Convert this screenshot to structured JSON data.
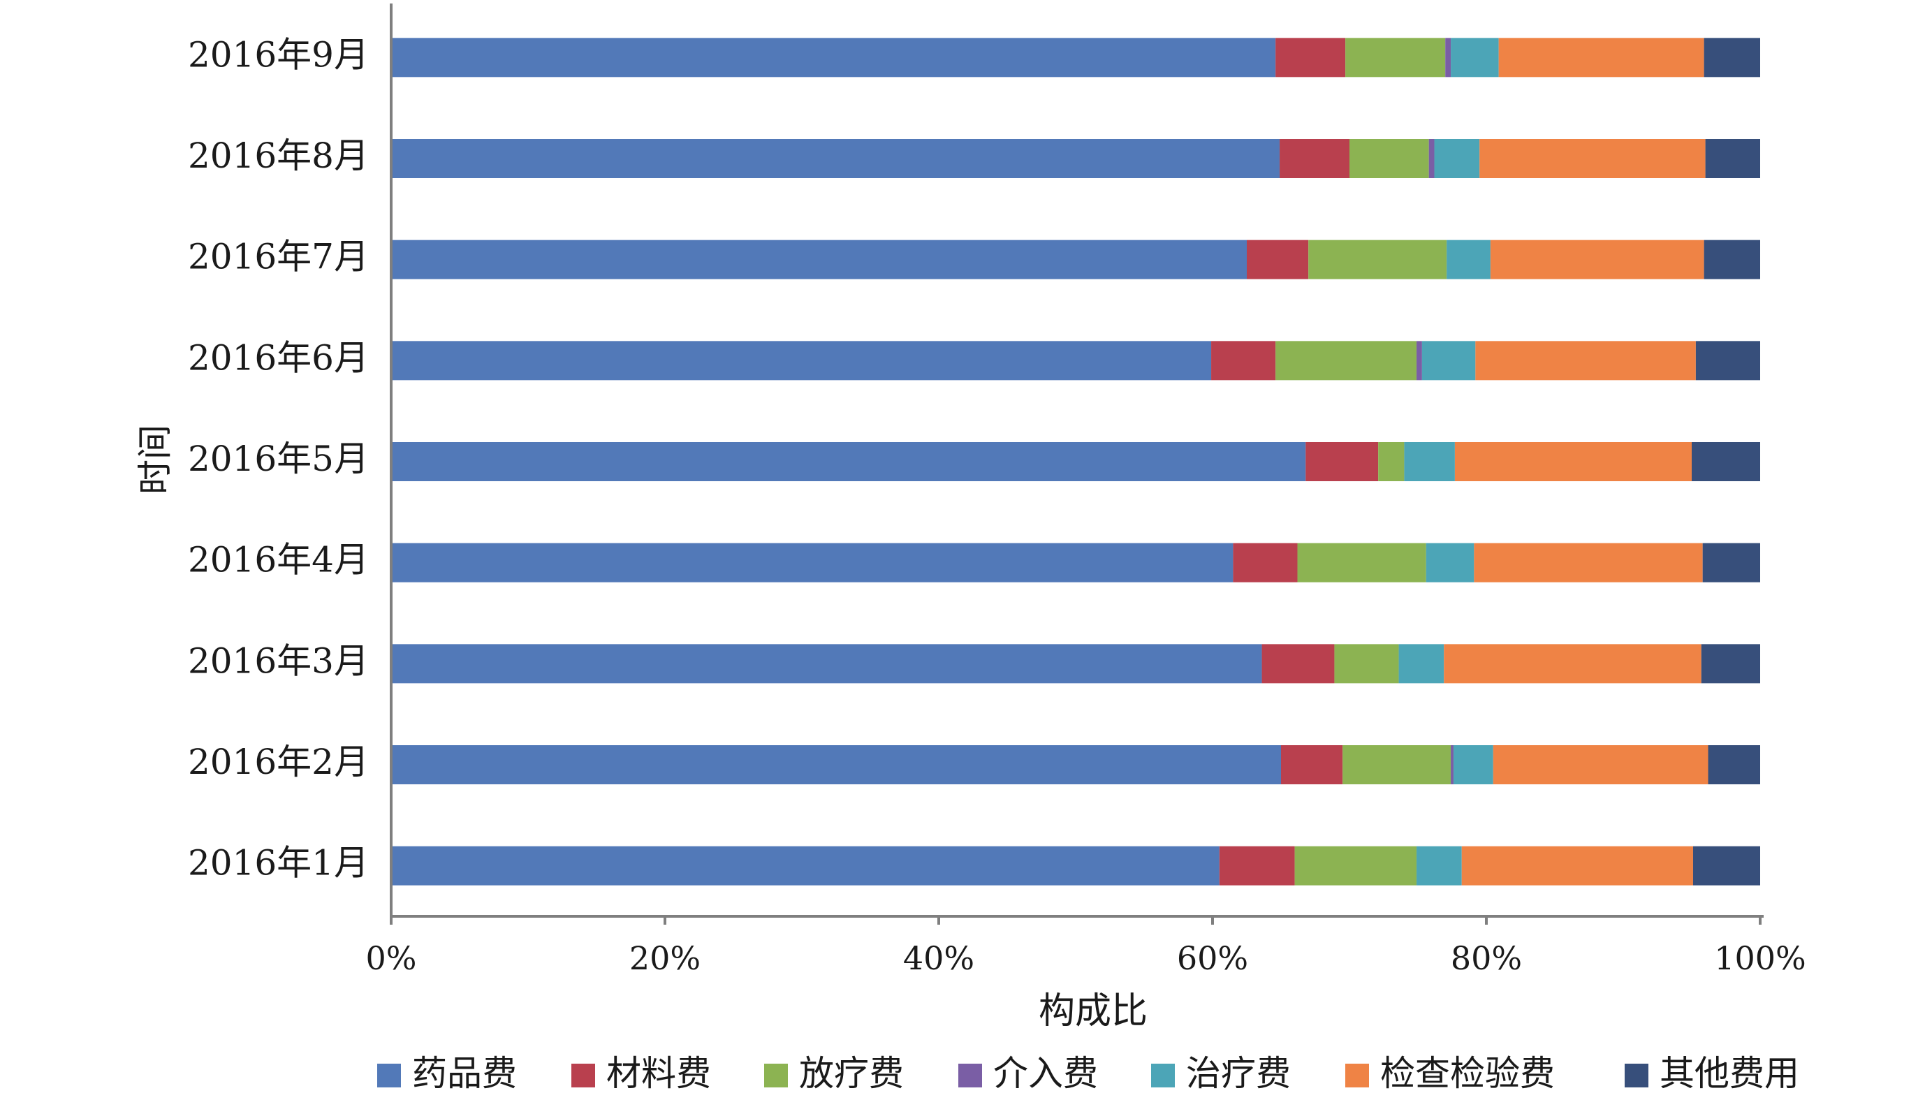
{
  "chart_data": {
    "type": "bar",
    "orientation": "horizontal",
    "stacked": "percent",
    "ylabel": "时间",
    "xlabel": "构成比",
    "xlim": [
      0,
      100
    ],
    "x_ticks": [
      "0%",
      "20%",
      "40%",
      "60%",
      "80%",
      "100%"
    ],
    "grid": false,
    "legend_position": "bottom",
    "categories": [
      "2016年9月",
      "2016年8月",
      "2016年7月",
      "2016年6月",
      "2016年5月",
      "2016年4月",
      "2016年3月",
      "2016年2月",
      "2016年1月"
    ],
    "series": [
      {
        "name": "药品费",
        "color": "#5279b8",
        "values": [
          64.6,
          64.9,
          62.5,
          59.9,
          66.8,
          61.5,
          63.6,
          65.0,
          60.5
        ]
      },
      {
        "name": "材料费",
        "color": "#b9404e",
        "values": [
          5.1,
          5.1,
          4.5,
          4.7,
          5.3,
          4.7,
          5.3,
          4.5,
          5.5
        ]
      },
      {
        "name": "放疗费",
        "color": "#8cb352",
        "values": [
          7.3,
          5.8,
          10.1,
          10.3,
          1.9,
          9.4,
          4.7,
          7.9,
          8.9
        ]
      },
      {
        "name": "介入费",
        "color": "#7a5ea5",
        "values": [
          0.4,
          0.4,
          0.0,
          0.4,
          0.0,
          0.0,
          0.0,
          0.2,
          0.0
        ]
      },
      {
        "name": "治疗费",
        "color": "#4ca5b7",
        "values": [
          3.5,
          3.3,
          3.2,
          3.9,
          3.7,
          3.5,
          3.3,
          2.9,
          3.3
        ]
      },
      {
        "name": "检查检验费",
        "color": "#ef8345",
        "values": [
          15.0,
          16.5,
          15.6,
          16.1,
          17.3,
          16.7,
          18.8,
          15.7,
          16.9
        ]
      },
      {
        "name": "其他费用",
        "color": "#374f7b",
        "values": [
          4.1,
          4.0,
          4.1,
          4.7,
          5.0,
          4.2,
          4.3,
          3.8,
          4.9
        ]
      }
    ]
  }
}
